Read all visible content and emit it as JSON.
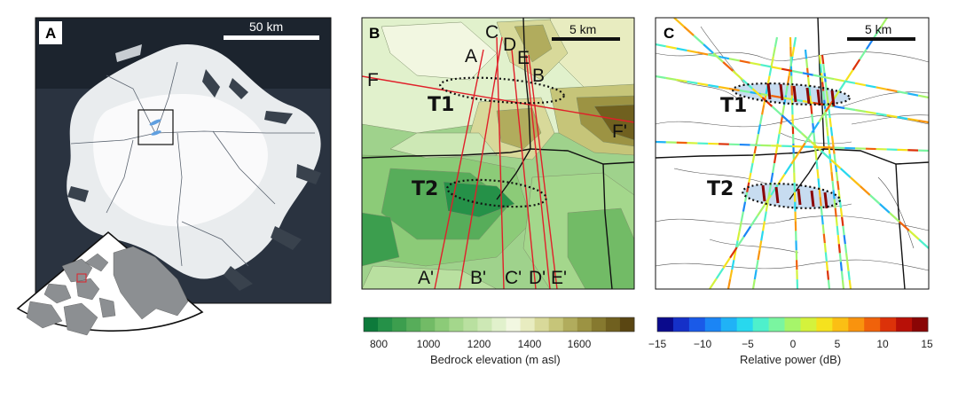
{
  "panel_a": {
    "letter": "A",
    "scale_label": "50 km",
    "study_area_box_color": "#111111",
    "target_fill": "#5f9fe0"
  },
  "panel_b": {
    "letter": "B",
    "scale_label": "5 km",
    "profile_labels": [
      "A",
      "C",
      "D",
      "E",
      "B",
      "F",
      "F'",
      "A'",
      "B'",
      "C'",
      "D'",
      "E'"
    ],
    "targets": [
      "T1",
      "T2"
    ],
    "profile_line_color": "#e0202a"
  },
  "panel_c": {
    "letter": "C",
    "scale_label": "5 km",
    "targets": [
      "T1",
      "T2"
    ],
    "target_fill": "#c7dcf0"
  },
  "colorbar_bedrock": {
    "ticks": [
      "800",
      "1000",
      "1200",
      "1400",
      "1600"
    ],
    "title": "Bedrock elevation (m asl)",
    "min": 800,
    "max": 1640,
    "colors": [
      "#0d7a3b",
      "#259148",
      "#3c9e4e",
      "#57ad5a",
      "#72bb66",
      "#8ccb78",
      "#a4d78c",
      "#b9e0a0",
      "#cde8b5",
      "#e1f1cc",
      "#f2f7e1",
      "#e8ecc0",
      "#d8d99a",
      "#c6c579",
      "#b1ac5d",
      "#9c9343",
      "#86792f",
      "#70601f",
      "#5a4612"
    ]
  },
  "colorbar_power": {
    "ticks": [
      "−15",
      "−10",
      "−5",
      "0",
      "5",
      "10",
      "15"
    ],
    "title": "Relative power (dB)",
    "min": -15,
    "max": 15,
    "colors": [
      "#0a0a8c",
      "#1530c8",
      "#1a5ae8",
      "#1b85f5",
      "#20b2f6",
      "#28d8ee",
      "#4ef0cc",
      "#7af5a0",
      "#a6f56a",
      "#d4f23c",
      "#f5e21e",
      "#fbbf14",
      "#f9930e",
      "#f0620b",
      "#dc3209",
      "#b81007",
      "#8a0505"
    ]
  }
}
